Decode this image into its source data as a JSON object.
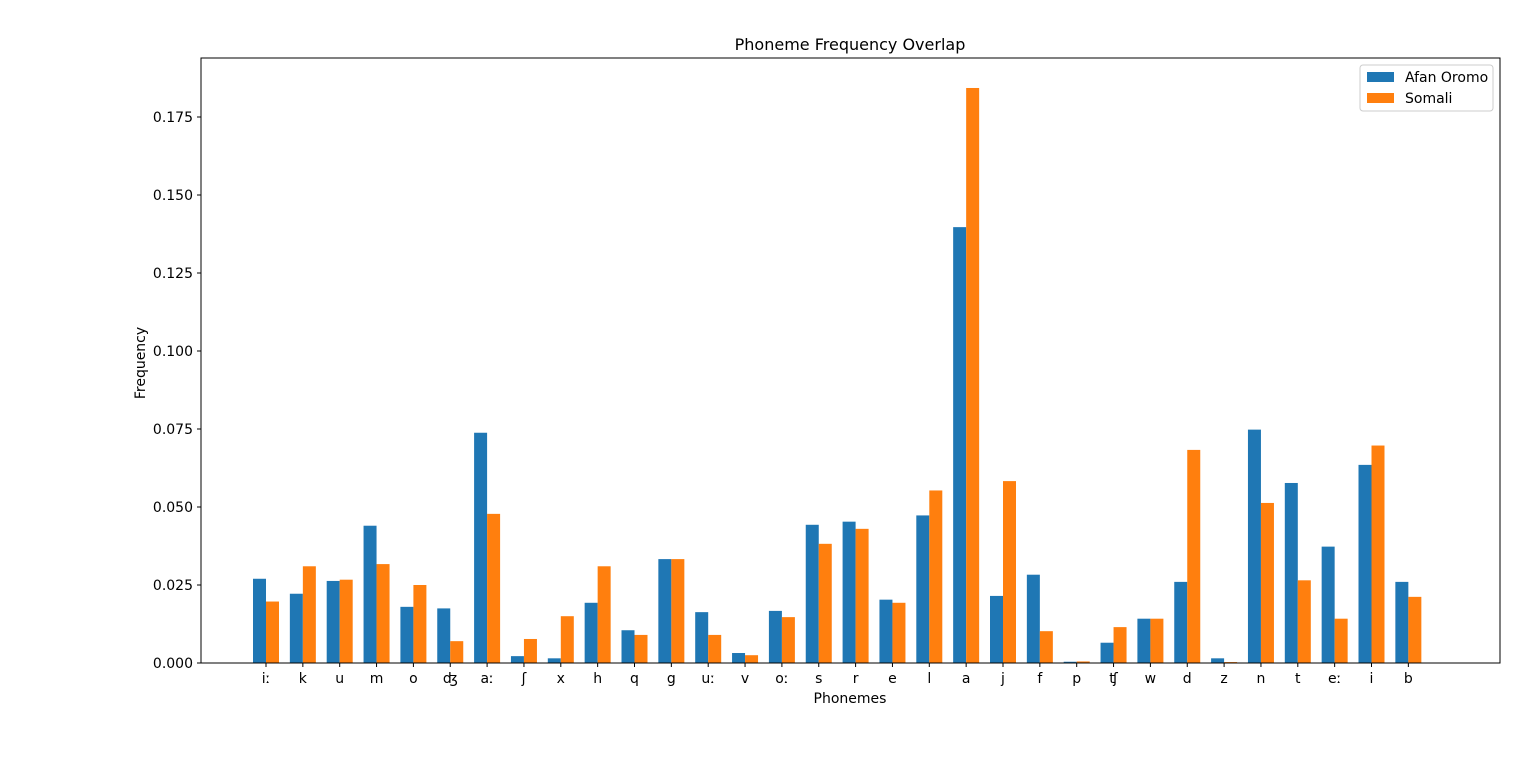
{
  "chart_data": {
    "type": "bar",
    "title": "Phoneme Frequency Overlap",
    "xlabel": "Phonemes",
    "ylabel": "Frequency",
    "ylim": [
      0,
      0.19
    ],
    "yticks": [
      "0.000",
      "0.025",
      "0.050",
      "0.075",
      "0.100",
      "0.125",
      "0.150",
      "0.175"
    ],
    "grid": false,
    "legend_position": "upper right",
    "categories": [
      "iː",
      "k",
      "u",
      "m",
      "o",
      "ʤ",
      "aː",
      "ʃ",
      "x",
      "h",
      "q",
      "g",
      "uː",
      "v",
      "oː",
      "s",
      "r",
      "e",
      "l",
      "a",
      "j",
      "f",
      "p",
      "ʧ",
      "w",
      "d",
      "z",
      "n",
      "t",
      "eː",
      "i",
      "b"
    ],
    "series": [
      {
        "name": "Afan Oromo",
        "color": "#1f77b4",
        "values": [
          0.027,
          0.0222,
          0.0263,
          0.044,
          0.018,
          0.0175,
          0.0738,
          0.0022,
          0.0015,
          0.0193,
          0.0105,
          0.0333,
          0.0163,
          0.0032,
          0.0167,
          0.0443,
          0.0453,
          0.0203,
          0.0473,
          0.1397,
          0.0215,
          0.0283,
          0.0004,
          0.0065,
          0.0142,
          0.026,
          0.0015,
          0.0748,
          0.0577,
          0.0373,
          0.0635,
          0.026
        ]
      },
      {
        "name": "Somali",
        "color": "#ff7f0e",
        "values": [
          0.0197,
          0.031,
          0.0267,
          0.0317,
          0.025,
          0.007,
          0.0478,
          0.0077,
          0.015,
          0.031,
          0.009,
          0.0333,
          0.009,
          0.0025,
          0.0147,
          0.0382,
          0.043,
          0.0193,
          0.0553,
          0.1843,
          0.0583,
          0.0102,
          0.0005,
          0.0115,
          0.0142,
          0.0683,
          0.0003,
          0.0513,
          0.0265,
          0.0142,
          0.0697,
          0.0212
        ]
      }
    ]
  }
}
